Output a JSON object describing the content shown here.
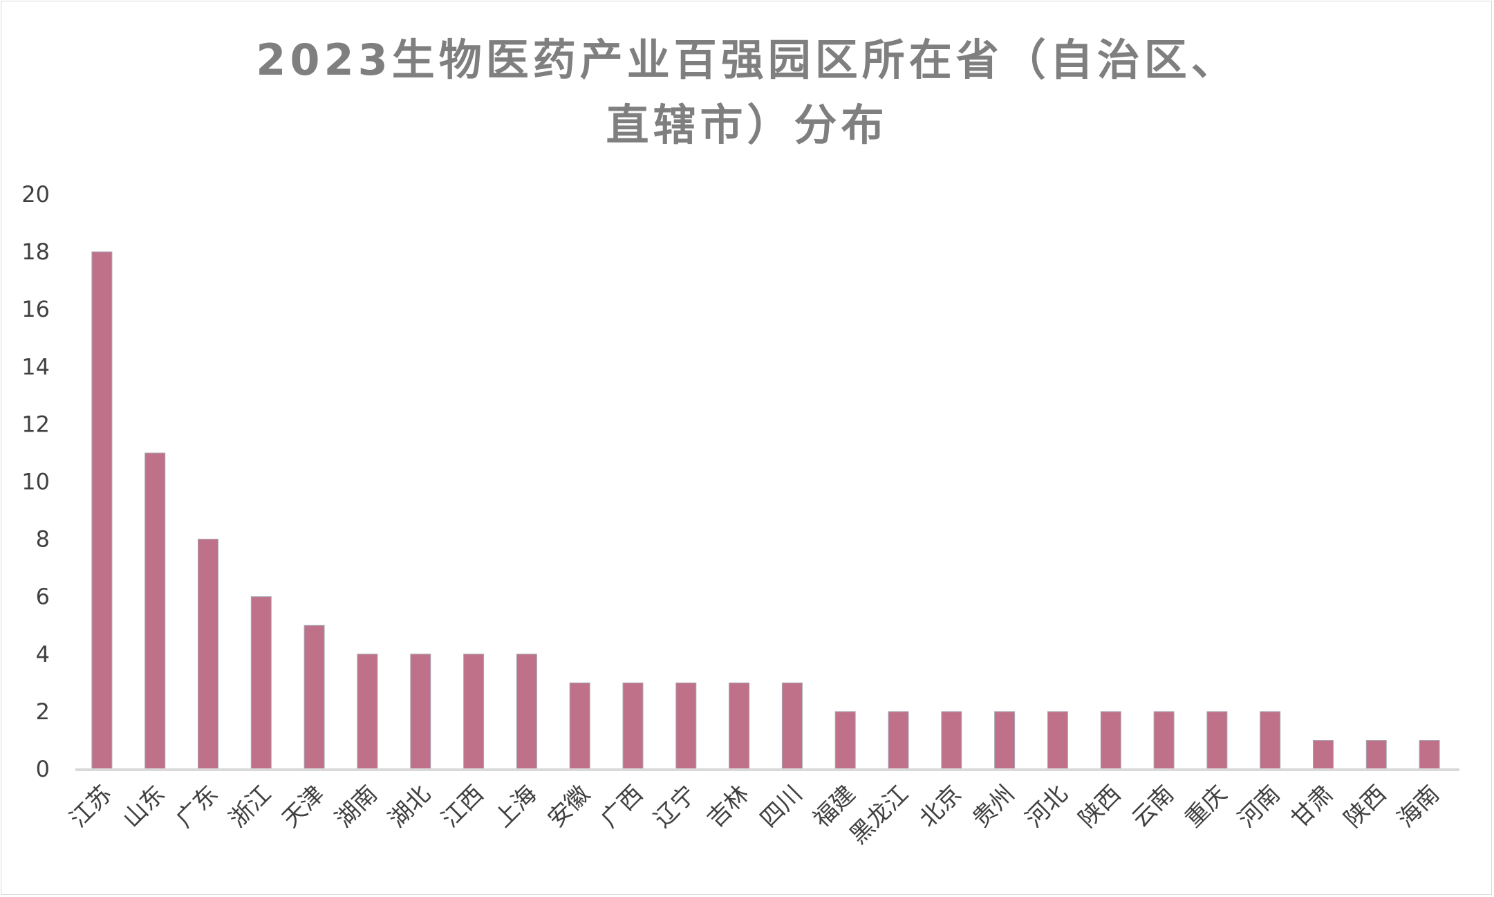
{
  "chart_data": {
    "type": "bar",
    "title": "2023生物医药产业百强园区所在省（自治区、直辖市）分布",
    "title_lines": [
      "2023生物医药产业百强园区所在省（自治区、",
      "直辖市）分布"
    ],
    "xlabel": "",
    "ylabel": "",
    "ylim": [
      0,
      20
    ],
    "yticks": [
      0,
      2,
      4,
      6,
      8,
      10,
      12,
      14,
      16,
      18,
      20
    ],
    "grid": false,
    "legend": "none",
    "bar_color": "#c0718a",
    "categories": [
      "江苏",
      "山东",
      "广东",
      "浙江",
      "天津",
      "湖南",
      "湖北",
      "江西",
      "上海",
      "安徽",
      "广西",
      "辽宁",
      "吉林",
      "四川",
      "福建",
      "黑龙江",
      "北京",
      "贵州",
      "河北",
      "陕西",
      "云南",
      "重庆",
      "河南",
      "甘肃",
      "陕西",
      "海南"
    ],
    "values": [
      18,
      11,
      8,
      6,
      5,
      4,
      4,
      4,
      4,
      3,
      3,
      3,
      3,
      3,
      2,
      2,
      2,
      2,
      2,
      2,
      2,
      2,
      2,
      1,
      1,
      1
    ]
  }
}
